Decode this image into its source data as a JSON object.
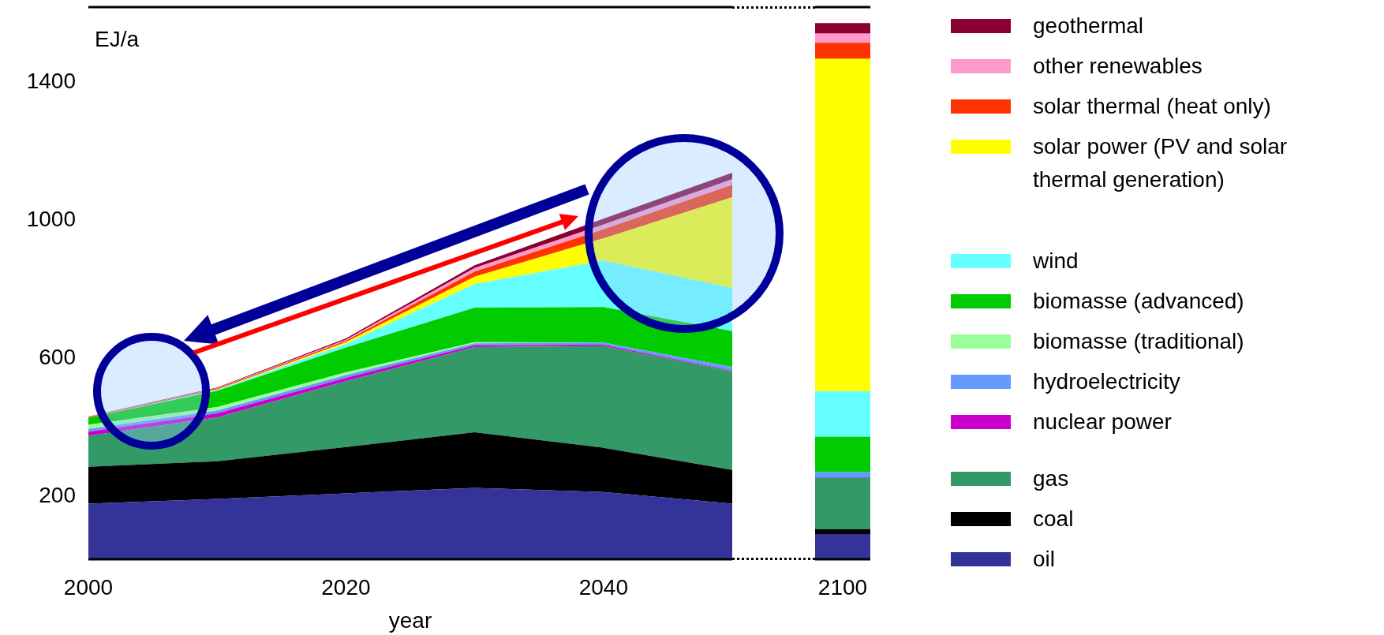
{
  "chart_data": [
    {
      "type": "area",
      "stacked": true,
      "ylabel": "EJ/a",
      "xlabel": "year",
      "x": [
        2000,
        2010,
        2020,
        2030,
        2040,
        2050
      ],
      "xlim": [
        2000,
        2050
      ],
      "xticks": [
        2000,
        2020,
        2040
      ],
      "ylim": [
        0,
        1600
      ],
      "yticks": [
        200,
        600,
        1000,
        1400
      ],
      "grid": false,
      "series": [
        {
          "color": "#333399",
          "values": [
            161,
            175,
            191,
            207,
            195,
            161
          ]
        },
        {
          "color": "#000000",
          "values": [
            107,
            109,
            134,
            161,
            128,
            98
          ]
        },
        {
          "color": "#339966",
          "values": [
            90,
            127,
            191,
            247,
            295,
            286
          ]
        },
        {
          "color": "#cc00cc",
          "values": [
            12,
            12,
            10,
            5,
            4,
            2
          ]
        },
        {
          "color": "#6699ff",
          "values": [
            8,
            8,
            8,
            6,
            6,
            10
          ]
        },
        {
          "color": "#99ff99",
          "values": [
            12,
            10,
            8,
            3,
            0,
            0
          ]
        },
        {
          "color": "#00cc00",
          "values": [
            20,
            47,
            72,
            100,
            103,
            104
          ]
        },
        {
          "color": "#66ffff",
          "values": [
            0,
            3,
            10,
            69,
            135,
            125
          ]
        },
        {
          "color": "#ffff00",
          "values": [
            0,
            1,
            5,
            21,
            64,
            263
          ]
        },
        {
          "color": "#ff3300",
          "values": [
            2,
            3,
            4,
            15,
            26,
            36
          ]
        },
        {
          "color": "#ff99cc",
          "values": [
            1,
            1,
            3,
            10,
            14,
            16
          ]
        },
        {
          "color": "#8b0033",
          "values": [
            1,
            2,
            4,
            8,
            17,
            19
          ]
        }
      ]
    },
    {
      "type": "bar",
      "stacked": true,
      "categories": [
        "2100"
      ],
      "ylim": [
        0,
        1600
      ],
      "yticks": [
        200,
        600,
        1000,
        1400
      ],
      "grid": false,
      "legend": "right",
      "tick_labels": "x",
      "series": [
        {
          "name": "oil",
          "color": "#333399",
          "values": [
            72
          ]
        },
        {
          "name": "coal",
          "color": "#000000",
          "values": [
            14
          ]
        },
        {
          "name": "gas",
          "color": "#339966",
          "values": [
            149
          ]
        },
        {
          "name": "nuclear power",
          "color": "#cc00cc",
          "values": [
            0
          ]
        },
        {
          "name": "hydroelectricity",
          "color": "#6699ff",
          "values": [
            17
          ]
        },
        {
          "name": "biomasse (traditional)",
          "color": "#99ff99",
          "values": [
            0
          ]
        },
        {
          "name": "biomasse (advanced)",
          "color": "#00cc00",
          "values": [
            102
          ]
        },
        {
          "name": "wind",
          "color": "#66ffff",
          "values": [
            132
          ]
        },
        {
          "name": "solar power (PV and solar thermal generation)",
          "color": "#ffff00",
          "values": [
            964
          ]
        },
        {
          "name": "solar thermal (heat only)",
          "color": "#ff3300",
          "values": [
            46
          ]
        },
        {
          "name": "other renewables",
          "color": "#ff99cc",
          "values": [
            27
          ]
        },
        {
          "name": "geothermal",
          "color": "#8b0033",
          "values": [
            30
          ]
        }
      ]
    }
  ]
}
